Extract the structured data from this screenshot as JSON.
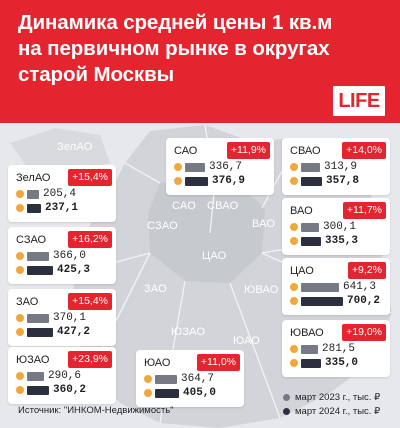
{
  "title": "Динамика средней цены 1 кв.м\nна первичном рынке в округах\nстарой Москвы",
  "logo": "LIFE",
  "map_labels": [
    "ЗелАО",
    "САО",
    "СВАО",
    "СЗАО",
    "ВАО",
    "ЦАО",
    "ЗАО",
    "ЮВАО",
    "ЮЗАО",
    "ЮАО"
  ],
  "source": "Источник: \"ИНКОМ-Недвижимость\"",
  "legend": {
    "y2023": "март 2023 г., тыс. ₽",
    "y2024": "март 2024 г., тыс. ₽",
    "color_2023": "#777a84",
    "color_2024": "#2c2f3e"
  },
  "colors": {
    "accent": "#e4252f",
    "dot": "#f2a73b"
  },
  "chart_data": {
    "type": "bar",
    "title": "Динамика средней цены 1 кв.м на первичном рынке в округах старой Москвы",
    "categories": [
      "ЗелАО",
      "СЗАО",
      "ЗАО",
      "ЮЗАО",
      "САО",
      "ЮАО",
      "СВАО",
      "ВАО",
      "ЦАО",
      "ЮВАО"
    ],
    "series": [
      {
        "name": "март 2023 г., тыс. ₽",
        "values": [
          205.4,
          366.0,
          370.1,
          290.6,
          336.7,
          364.7,
          313.9,
          300.1,
          641.3,
          281.5
        ]
      },
      {
        "name": "март 2024 г., тыс. ₽",
        "values": [
          237.1,
          425.3,
          427.2,
          360.2,
          376.9,
          405.0,
          357.8,
          335.3,
          700.2,
          335.0
        ]
      }
    ],
    "value_labels_2023": [
      "205,4",
      "366,0",
      "370,1",
      "290,6",
      "336,7",
      "364,7",
      "313,9",
      "300,1",
      "641,3",
      "281,5"
    ],
    "value_labels_2024": [
      "237,1",
      "425,3",
      "427,2",
      "360,2",
      "376,9",
      "405,0",
      "357,8",
      "335,3",
      "700,2",
      "335,0"
    ],
    "changes": [
      "+15,4%",
      "+16,2%",
      "+15,4%",
      "+23,9%",
      "+11,9%",
      "+11,0%",
      "+14,0%",
      "+11,7%",
      "+9,2%",
      "+19,0%"
    ],
    "legend_position": "bottom-right"
  }
}
